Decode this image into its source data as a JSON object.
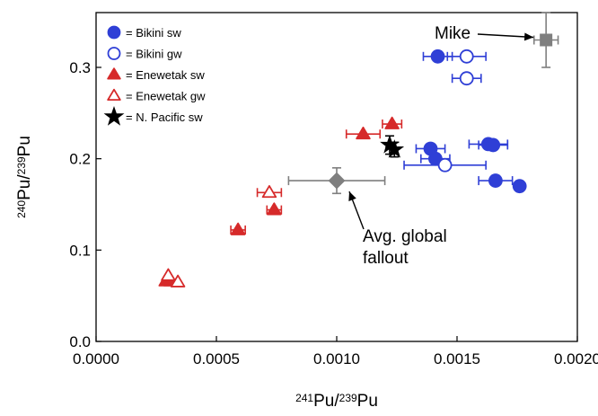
{
  "chart_data": {
    "type": "scatter",
    "x_axis": {
      "range": [
        0,
        0.002
      ],
      "ticks": [
        {
          "value": 0,
          "label": "0.0000"
        },
        {
          "value": 0.0005,
          "label": "0.0005"
        },
        {
          "value": 0.001,
          "label": "0.0010"
        },
        {
          "value": 0.0015,
          "label": "0.0015"
        },
        {
          "value": 0.002,
          "label": "0.0020"
        }
      ],
      "label": {
        "sup1": "241",
        "base1": "Pu/",
        "sup2": "239",
        "base2": "Pu"
      }
    },
    "y_axis": {
      "range": [
        0,
        0.36
      ],
      "ticks": [
        {
          "value": 0,
          "label": "0.0"
        },
        {
          "value": 0.1,
          "label": "0.1"
        },
        {
          "value": 0.2,
          "label": "0.2"
        },
        {
          "value": 0.3,
          "label": "0.3"
        }
      ],
      "label": {
        "sup1": "240",
        "base1": "Pu/",
        "sup2": "239",
        "base2": "Pu"
      }
    },
    "grid": false,
    "legend_position": "top-left",
    "series": [
      {
        "name": "= Bikini sw",
        "marker": "circle",
        "filled": true,
        "color": "#2f3fd6",
        "points": [
          {
            "x": 0.00142,
            "y": 0.312,
            "xerr": 6e-05
          },
          {
            "x": 0.00139,
            "y": 0.211,
            "xerr": 6e-05
          },
          {
            "x": 0.00141,
            "y": 0.2,
            "xerr": 6e-05
          },
          {
            "x": 0.00163,
            "y": 0.216,
            "xerr": 8e-05
          },
          {
            "x": 0.00165,
            "y": 0.215,
            "xerr": 6e-05
          },
          {
            "x": 0.00166,
            "y": 0.176,
            "xerr": 7e-05
          },
          {
            "x": 0.00176,
            "y": 0.17
          }
        ]
      },
      {
        "name": "= Bikini gw",
        "marker": "circle",
        "filled": false,
        "color": "#2f3fd6",
        "points": [
          {
            "x": 0.00154,
            "y": 0.312,
            "xerr": 8e-05
          },
          {
            "x": 0.00154,
            "y": 0.288,
            "xerr": 6e-05
          },
          {
            "x": 0.00145,
            "y": 0.193,
            "xerr": 0.00017
          }
        ]
      },
      {
        "name": "= Enewetak sw",
        "marker": "triangle",
        "filled": true,
        "color": "#d62a2a",
        "points": [
          {
            "x": 0.00123,
            "y": 0.238,
            "xerr": 4e-05
          },
          {
            "x": 0.00111,
            "y": 0.227,
            "xerr": 7e-05
          },
          {
            "x": 0.00074,
            "y": 0.144,
            "xerr": 3e-05
          },
          {
            "x": 0.00059,
            "y": 0.122,
            "xerr": 3e-05
          },
          {
            "x": 0.00029,
            "y": 0.066
          },
          {
            "x": 0.00031,
            "y": 0.066
          }
        ]
      },
      {
        "name": "= Enewetak gw",
        "marker": "triangle",
        "filled": false,
        "color": "#d62a2a",
        "points": [
          {
            "x": 0.00072,
            "y": 0.163,
            "xerr": 5e-05
          },
          {
            "x": 0.0003,
            "y": 0.072
          },
          {
            "x": 0.00034,
            "y": 0.065
          }
        ]
      },
      {
        "name": "= N. Pacific sw",
        "marker": "star",
        "filled": true,
        "color": "#000000",
        "points": [
          {
            "x": 0.00122,
            "y": 0.215,
            "yerr": 0.01
          },
          {
            "x": 0.00124,
            "y": 0.21,
            "yerr": 0.008
          }
        ]
      }
    ],
    "reference_points": [
      {
        "name": "Mike",
        "marker": "square",
        "color": "#7f7f7f",
        "x": 0.00187,
        "y": 0.33,
        "xerr": 5e-05,
        "yerr": 0.03
      },
      {
        "name": "Avg. global fallout",
        "marker": "diamond",
        "color": "#7f7f7f",
        "x": 0.001,
        "y": 0.176,
        "xerr": 0.0002,
        "yerr": 0.014
      }
    ],
    "annotations": [
      {
        "id": "mike",
        "lines": [
          "Mike"
        ]
      },
      {
        "id": "fallout",
        "lines": [
          "Avg. global",
          "fallout"
        ]
      }
    ]
  }
}
